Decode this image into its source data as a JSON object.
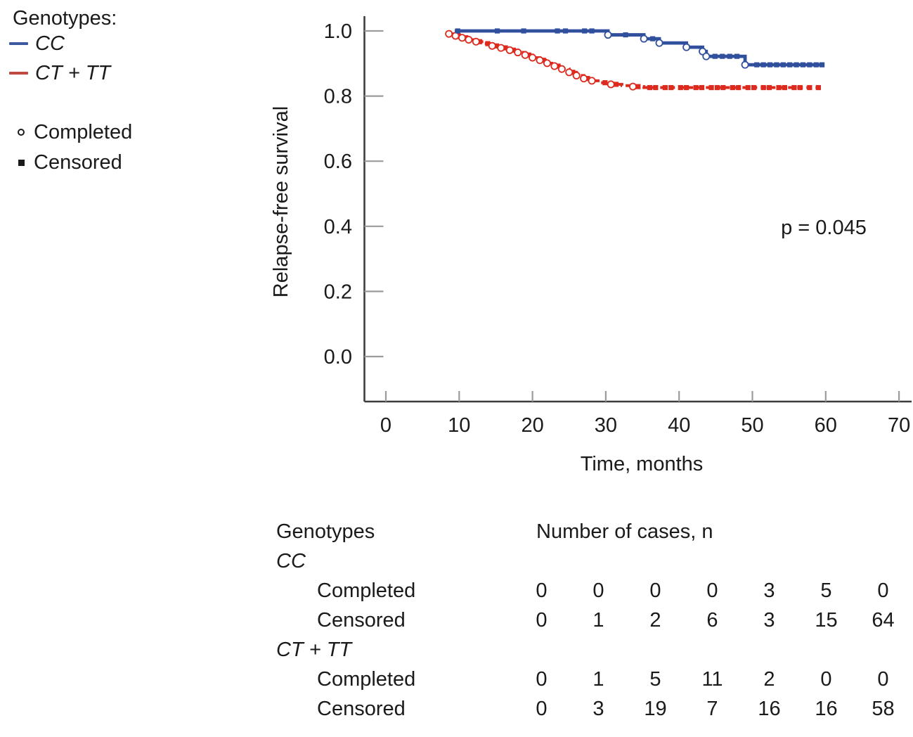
{
  "legend": {
    "title": "Genotypes:",
    "series": [
      {
        "label": "CC",
        "color": "#3d5aa1"
      },
      {
        "label": "CT + TT",
        "color": "#c04a41"
      }
    ],
    "markers": [
      {
        "label": "Completed",
        "type": "circle"
      },
      {
        "label": "Censored",
        "type": "square"
      }
    ]
  },
  "chart_data": {
    "type": "line",
    "subtype": "kaplan-meier-step",
    "title": "",
    "xlabel": "Time, months",
    "ylabel": "Relapse-free survival",
    "annotation": "p = 0.045",
    "x_ticks": [
      0,
      10,
      20,
      30,
      40,
      50,
      60,
      70
    ],
    "y_ticks": [
      "0.0",
      "0.2",
      "0.4",
      "0.6",
      "0.8",
      "1.0"
    ],
    "xlim": [
      0,
      70
    ],
    "ylim": [
      0.0,
      1.0
    ],
    "grid": false,
    "legend_position": "outside-top-left",
    "axis_color": "#3d3d3d",
    "tick_color": "#9b9b9b",
    "series": [
      {
        "name": "CC",
        "color": "#30509d",
        "line_style": "solid",
        "steps": [
          [
            9.4,
            1.0
          ],
          [
            30.3,
            0.988
          ],
          [
            35.2,
            0.976
          ],
          [
            37.3,
            0.963
          ],
          [
            41.0,
            0.95
          ],
          [
            43.2,
            0.937
          ],
          [
            43.7,
            0.922
          ],
          [
            49.0,
            0.896
          ],
          [
            59.6,
            0.896
          ]
        ],
        "completed_markers": [
          [
            30.3,
            0.988
          ],
          [
            35.2,
            0.976
          ],
          [
            37.3,
            0.963
          ],
          [
            41.0,
            0.95
          ],
          [
            43.2,
            0.937
          ],
          [
            43.7,
            0.922
          ],
          [
            49.0,
            0.896
          ]
        ],
        "censored_markers": [
          [
            9.8,
            1.0
          ],
          [
            15.2,
            1.0
          ],
          [
            18.8,
            1.0
          ],
          [
            23.4,
            1.0
          ],
          [
            24.5,
            1.0
          ],
          [
            27.1,
            1.0
          ],
          [
            28.1,
            1.0
          ],
          [
            32.7,
            0.988
          ],
          [
            36.4,
            0.976
          ],
          [
            44.9,
            0.922
          ],
          [
            45.9,
            0.922
          ],
          [
            46.9,
            0.922
          ],
          [
            47.9,
            0.922
          ],
          [
            50.6,
            0.896
          ],
          [
            51.5,
            0.896
          ],
          [
            52.4,
            0.896
          ],
          [
            53.3,
            0.896
          ],
          [
            54.2,
            0.896
          ],
          [
            55.1,
            0.896
          ],
          [
            56.0,
            0.896
          ],
          [
            56.9,
            0.896
          ],
          [
            57.8,
            0.896
          ],
          [
            58.7,
            0.896
          ],
          [
            59.5,
            0.896
          ]
        ]
      },
      {
        "name": "CT + TT",
        "color": "#dc2b1e",
        "line_style": "dashed",
        "steps": [
          [
            8.6,
            0.991
          ],
          [
            9.5,
            0.985
          ],
          [
            10.4,
            0.979
          ],
          [
            11.3,
            0.973
          ],
          [
            12.3,
            0.967
          ],
          [
            13.3,
            0.961
          ],
          [
            14.5,
            0.954
          ],
          [
            15.7,
            0.948
          ],
          [
            16.9,
            0.941
          ],
          [
            18.0,
            0.934
          ],
          [
            19.0,
            0.926
          ],
          [
            20.0,
            0.918
          ],
          [
            21.0,
            0.91
          ],
          [
            22.0,
            0.901
          ],
          [
            23.0,
            0.892
          ],
          [
            24.0,
            0.883
          ],
          [
            25.0,
            0.873
          ],
          [
            26.0,
            0.863
          ],
          [
            27.0,
            0.854
          ],
          [
            28.1,
            0.847
          ],
          [
            29.3,
            0.841
          ],
          [
            30.7,
            0.836
          ],
          [
            32.2,
            0.832
          ],
          [
            33.7,
            0.829
          ],
          [
            35.2,
            0.826
          ],
          [
            59.3,
            0.826
          ]
        ],
        "completed_markers": [
          [
            8.6,
            0.991
          ],
          [
            9.5,
            0.985
          ],
          [
            10.4,
            0.979
          ],
          [
            11.3,
            0.973
          ],
          [
            12.3,
            0.967
          ],
          [
            14.5,
            0.954
          ],
          [
            15.7,
            0.948
          ],
          [
            16.9,
            0.941
          ],
          [
            18.0,
            0.934
          ],
          [
            19.0,
            0.926
          ],
          [
            20.0,
            0.918
          ],
          [
            21.0,
            0.91
          ],
          [
            22.0,
            0.901
          ],
          [
            23.0,
            0.892
          ],
          [
            24.0,
            0.883
          ],
          [
            25.0,
            0.873
          ],
          [
            26.0,
            0.863
          ],
          [
            27.0,
            0.854
          ],
          [
            28.1,
            0.847
          ],
          [
            30.7,
            0.836
          ],
          [
            33.7,
            0.829
          ]
        ],
        "censored_markers": [
          [
            9.9,
            0.985
          ],
          [
            10.9,
            0.979
          ],
          [
            12.8,
            0.967
          ],
          [
            13.9,
            0.961
          ],
          [
            15.1,
            0.954
          ],
          [
            16.3,
            0.948
          ],
          [
            17.4,
            0.941
          ],
          [
            19.5,
            0.926
          ],
          [
            21.5,
            0.91
          ],
          [
            23.5,
            0.892
          ],
          [
            25.5,
            0.873
          ],
          [
            27.5,
            0.854
          ],
          [
            29.9,
            0.841
          ],
          [
            31.4,
            0.836
          ],
          [
            34.4,
            0.829
          ],
          [
            36.0,
            0.826
          ],
          [
            36.8,
            0.826
          ],
          [
            38.1,
            0.826
          ],
          [
            38.9,
            0.826
          ],
          [
            40.2,
            0.826
          ],
          [
            41.0,
            0.826
          ],
          [
            42.3,
            0.826
          ],
          [
            43.1,
            0.826
          ],
          [
            44.4,
            0.826
          ],
          [
            45.2,
            0.826
          ],
          [
            46.0,
            0.826
          ],
          [
            47.3,
            0.826
          ],
          [
            48.1,
            0.826
          ],
          [
            49.4,
            0.826
          ],
          [
            50.2,
            0.826
          ],
          [
            51.5,
            0.826
          ],
          [
            52.3,
            0.826
          ],
          [
            53.6,
            0.826
          ],
          [
            54.4,
            0.826
          ],
          [
            55.7,
            0.826
          ],
          [
            56.5,
            0.826
          ],
          [
            57.8,
            0.826
          ],
          [
            59.0,
            0.826
          ]
        ]
      }
    ]
  },
  "table": {
    "col1_header": "Genotypes",
    "values_header": "Number of cases, n",
    "rows": [
      {
        "label": "CC",
        "values": []
      },
      {
        "label": "Completed",
        "values": [
          0,
          0,
          0,
          0,
          3,
          5,
          0
        ]
      },
      {
        "label": "Censored",
        "values": [
          0,
          1,
          2,
          6,
          3,
          15,
          64
        ]
      },
      {
        "label": "CT + TT",
        "values": []
      },
      {
        "label": "Completed",
        "values": [
          0,
          1,
          5,
          11,
          2,
          0,
          0
        ]
      },
      {
        "label": "Censored",
        "values": [
          0,
          3,
          19,
          7,
          16,
          16,
          58
        ]
      }
    ]
  }
}
